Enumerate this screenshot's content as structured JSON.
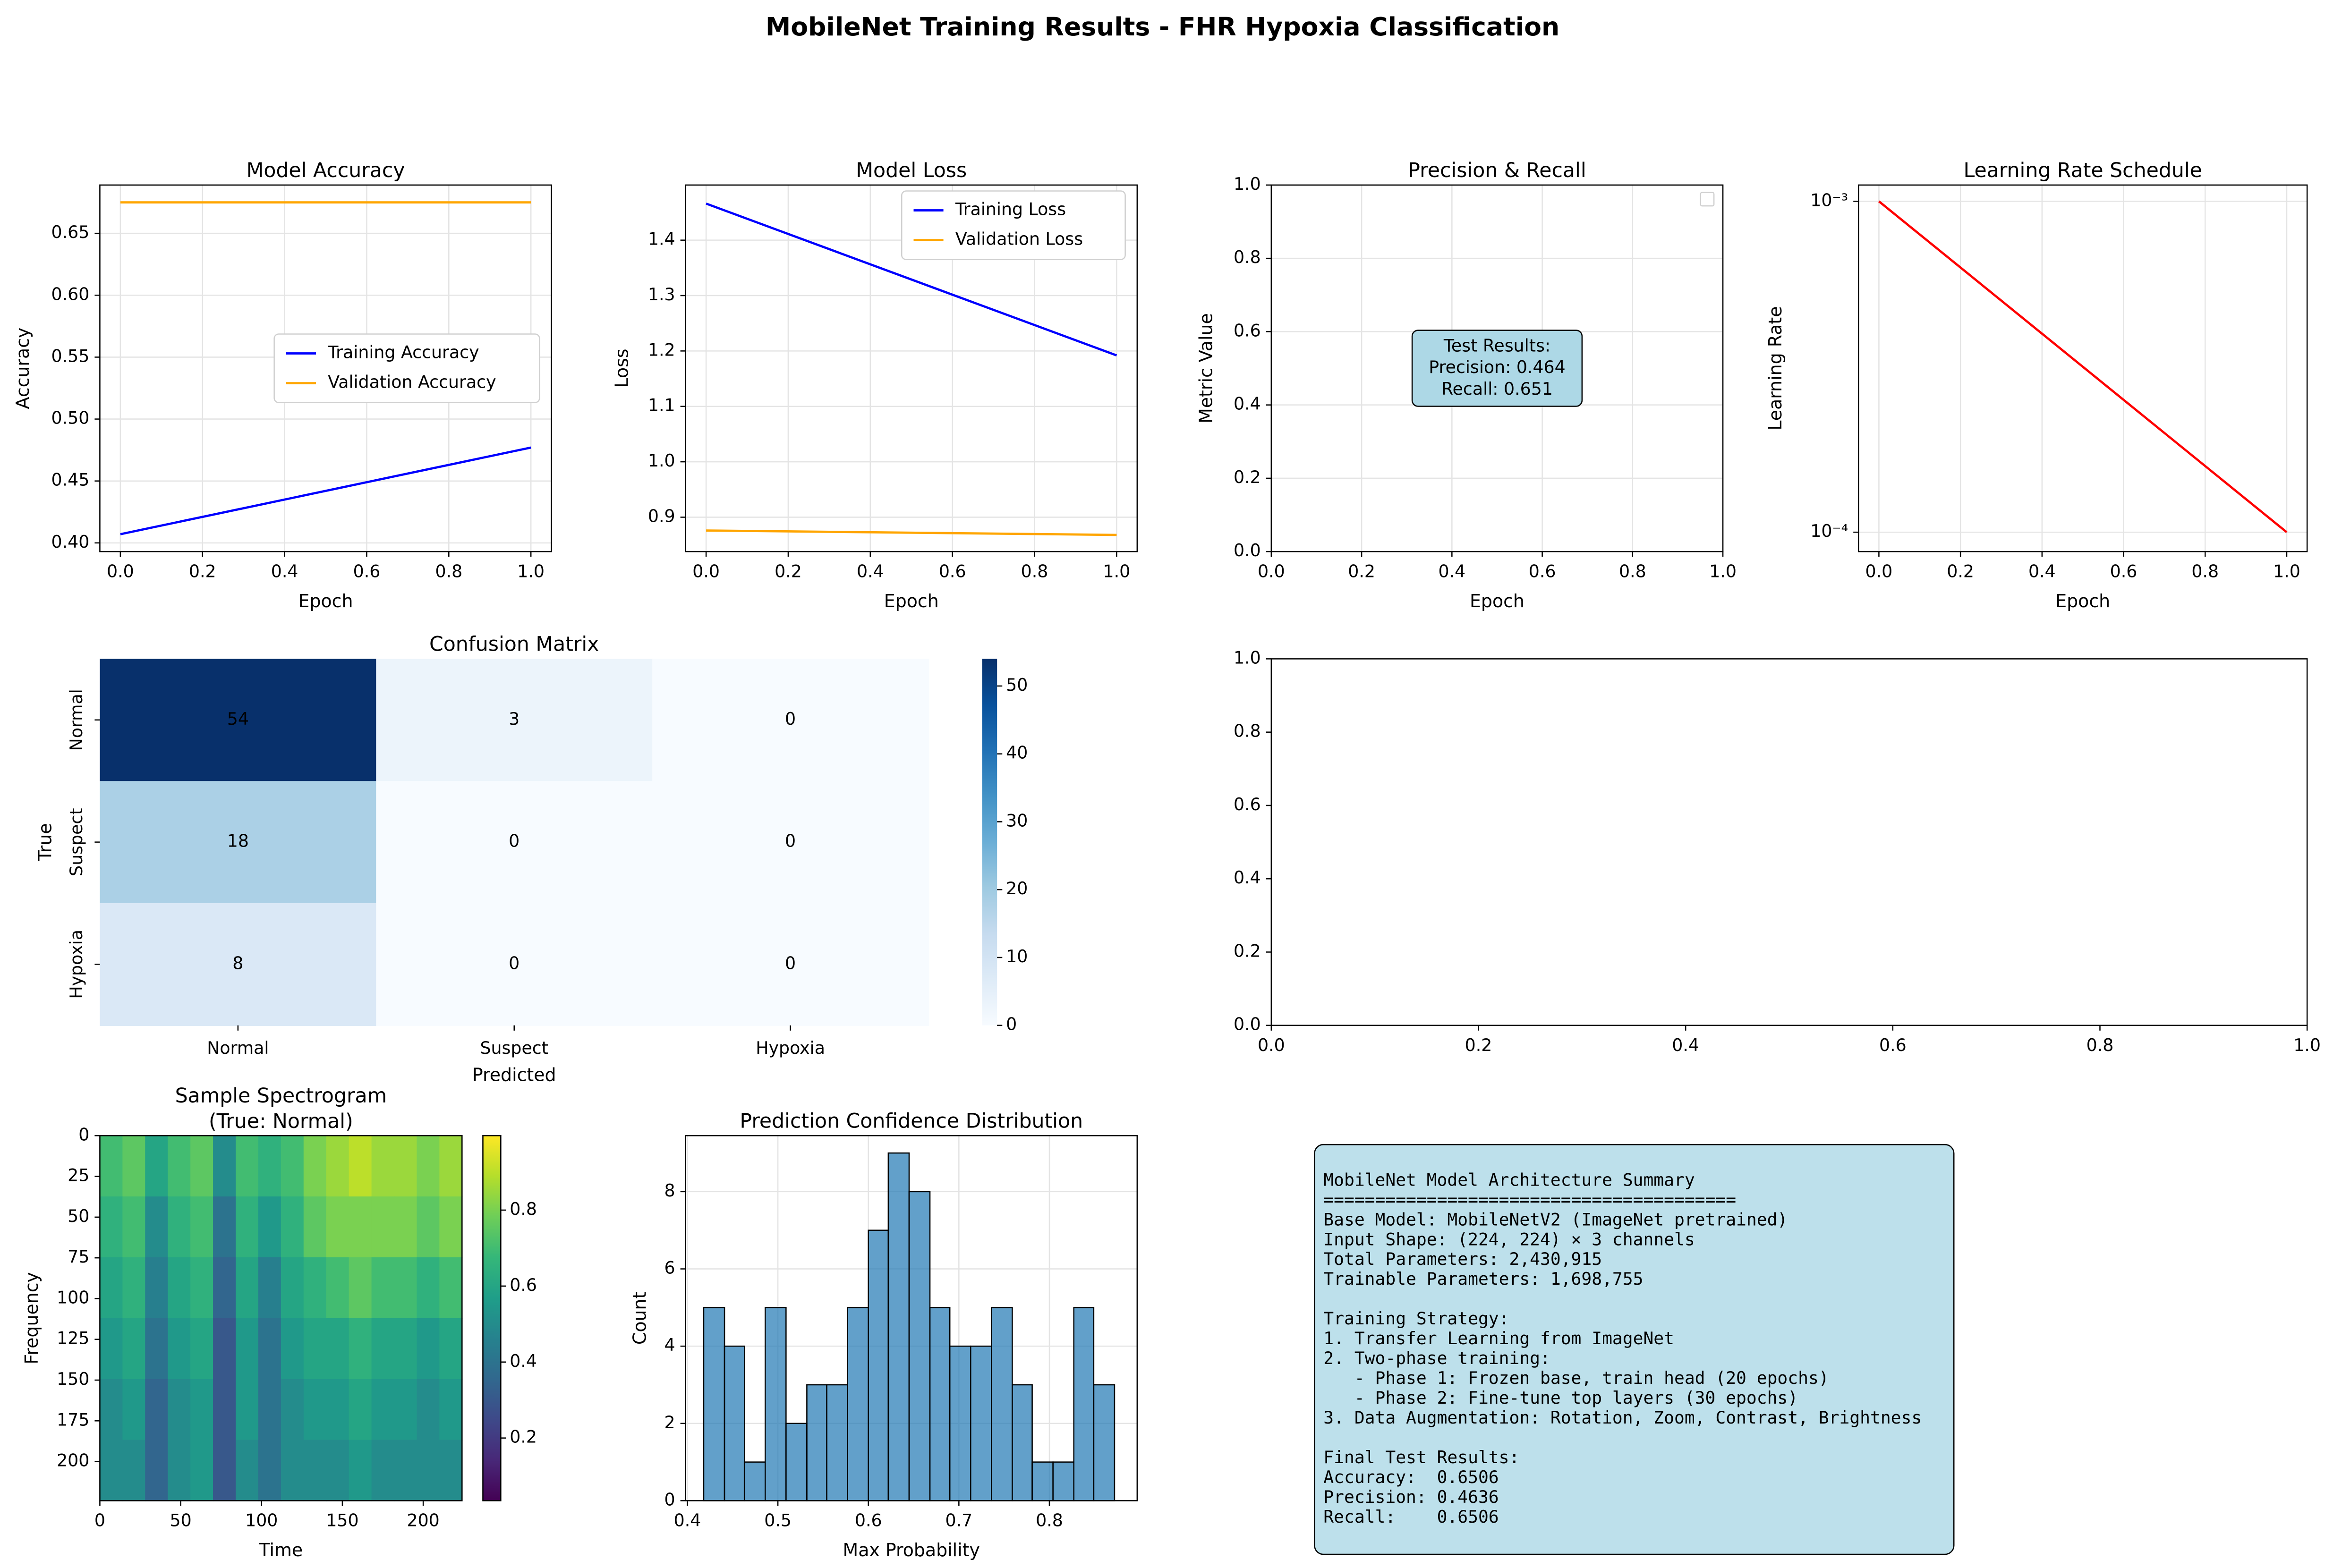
{
  "title": "MobileNet Training Results - FHR Hypoxia Classification",
  "chart_data": [
    {
      "type": "line",
      "title": "Model Accuracy",
      "xlabel": "Epoch",
      "ylabel": "Accuracy",
      "x": [
        0,
        1
      ],
      "series": [
        {
          "name": "Training Accuracy",
          "color": "#0000ff",
          "values": [
            0.407,
            0.477
          ]
        },
        {
          "name": "Validation Accuracy",
          "color": "#ffa500",
          "values": [
            0.675,
            0.675
          ]
        }
      ],
      "xlim": [
        -0.05,
        1.05
      ],
      "ylim": [
        0.393,
        0.689
      ],
      "xticks": [
        {
          "value": 0,
          "label": "0.0"
        },
        0.2,
        0.4,
        0.6,
        0.8,
        {
          "value": 1,
          "label": "1.0"
        }
      ],
      "yticks": [
        {
          "value": 0.4,
          "label": "0.40"
        },
        0.45,
        {
          "value": 0.5,
          "label": "0.50"
        },
        0.55,
        {
          "value": 0.6,
          "label": "0.60"
        },
        0.65
      ],
      "grid": true,
      "legend": "center right"
    },
    {
      "type": "line",
      "title": "Model Loss",
      "xlabel": "Epoch",
      "ylabel": "Loss",
      "x": [
        0,
        1
      ],
      "series": [
        {
          "name": "Training Loss",
          "color": "#0000ff",
          "values": [
            1.466,
            1.192
          ]
        },
        {
          "name": "Validation Loss",
          "color": "#ffa500",
          "values": [
            0.876,
            0.868
          ]
        }
      ],
      "xlim": [
        -0.05,
        1.05
      ],
      "ylim": [
        0.838,
        1.4995
      ],
      "xticks": [
        {
          "value": 0,
          "label": "0.0"
        },
        0.2,
        0.4,
        0.6,
        0.8,
        {
          "value": 1,
          "label": "1.0"
        }
      ],
      "yticks": [
        0.9,
        {
          "value": 1,
          "label": "1.0"
        },
        1.1,
        1.2,
        1.3,
        1.4
      ],
      "grid": true,
      "legend": "upper right"
    },
    {
      "type": "line",
      "title": "Precision & Recall",
      "xlabel": "Epoch",
      "ylabel": "Metric Value",
      "series": [],
      "xlim": [
        0,
        1
      ],
      "ylim": [
        0,
        1
      ],
      "xticks": [
        {
          "value": 0,
          "label": "0.0"
        },
        0.2,
        0.4,
        0.6,
        0.8,
        {
          "value": 1,
          "label": "1.0"
        }
      ],
      "yticks": [
        {
          "value": 0,
          "label": "0.0"
        },
        0.2,
        0.4,
        0.6,
        0.8,
        {
          "value": 1,
          "label": "1.0"
        }
      ],
      "grid": true,
      "legend": "upper right",
      "annotation": "Test Results:\nPrecision: 0.464\nRecall: 0.651"
    },
    {
      "type": "line",
      "title": "Learning Rate Schedule",
      "xlabel": "Epoch",
      "ylabel": "Learning Rate",
      "x": [
        0,
        1
      ],
      "series": [
        {
          "color": "#ff0000",
          "values": [
            0.001,
            0.0001
          ]
        }
      ],
      "xlim": [
        -0.05,
        1.05
      ],
      "ylim": [
        8.74e-05,
        0.00112
      ],
      "ylog": true,
      "xticks": [
        {
          "value": 0,
          "label": "0.0"
        },
        0.2,
        0.4,
        0.6,
        0.8,
        {
          "value": 1,
          "label": "1.0"
        }
      ],
      "yticks": [
        {
          "value": 0.0001,
          "label": "10⁻⁴"
        },
        {
          "value": 0.001,
          "label": "10⁻³"
        }
      ],
      "grid": true
    },
    {
      "type": "heatmap",
      "title": "Confusion Matrix",
      "xlabel": "Predicted",
      "ylabel": "True",
      "x_categories": [
        "Normal",
        "Suspect",
        "Hypoxia"
      ],
      "y_categories": [
        "Normal",
        "Suspect",
        "Hypoxia"
      ],
      "values": [
        [
          54,
          3,
          0
        ],
        [
          18,
          0,
          0
        ],
        [
          8,
          0,
          0
        ]
      ],
      "cmap": "Blues",
      "clim": [
        0,
        54
      ],
      "cticks": [
        0,
        10,
        20,
        30,
        40,
        50
      ]
    },
    {
      "type": "line",
      "series": [],
      "xlim": [
        0,
        1
      ],
      "ylim": [
        0,
        1
      ],
      "xticks": [
        {
          "value": 0,
          "label": "0.0"
        },
        0.2,
        0.4,
        0.6,
        0.8,
        {
          "value": 1,
          "label": "1.0"
        }
      ],
      "yticks": [
        {
          "value": 0,
          "label": "0.0"
        },
        0.2,
        0.4,
        0.6,
        0.8,
        {
          "value": 1,
          "label": "1.0"
        }
      ]
    },
    {
      "type": "image",
      "title": "Sample Spectrogram\n(True: Normal)",
      "xlabel": "Time",
      "ylabel": "Frequency",
      "values": [
        [
          0.7,
          0.75,
          0.6,
          0.7,
          0.75,
          0.5,
          0.7,
          0.65,
          0.7,
          0.8,
          0.85,
          0.9,
          0.85,
          0.85,
          0.8,
          0.85
        ],
        [
          0.65,
          0.7,
          0.5,
          0.65,
          0.7,
          0.4,
          0.65,
          0.55,
          0.65,
          0.75,
          0.8,
          0.8,
          0.8,
          0.8,
          0.75,
          0.8
        ],
        [
          0.6,
          0.65,
          0.45,
          0.6,
          0.65,
          0.35,
          0.6,
          0.45,
          0.6,
          0.65,
          0.7,
          0.75,
          0.7,
          0.7,
          0.65,
          0.7
        ],
        [
          0.55,
          0.6,
          0.4,
          0.55,
          0.6,
          0.3,
          0.55,
          0.4,
          0.55,
          0.6,
          0.6,
          0.65,
          0.6,
          0.6,
          0.55,
          0.6
        ],
        [
          0.5,
          0.55,
          0.35,
          0.5,
          0.55,
          0.3,
          0.55,
          0.4,
          0.5,
          0.55,
          0.55,
          0.6,
          0.55,
          0.55,
          0.5,
          0.55
        ],
        [
          0.5,
          0.5,
          0.35,
          0.5,
          0.55,
          0.3,
          0.5,
          0.4,
          0.5,
          0.5,
          0.5,
          0.55,
          0.5,
          0.5,
          0.5,
          0.5
        ]
      ],
      "cmap": "viridis",
      "xlim": [
        0,
        224
      ],
      "ylim": [
        224,
        0
      ],
      "xticks": [
        0,
        50,
        100,
        150,
        200
      ],
      "yticks": [
        0,
        25,
        50,
        75,
        100,
        125,
        150,
        175,
        200
      ],
      "clim": [
        0.035,
        0.996
      ],
      "cticks": [
        0.2,
        0.4,
        0.6,
        0.8
      ]
    },
    {
      "type": "histogram",
      "title": "Prediction Confidence Distribution",
      "xlabel": "Max Probability",
      "ylabel": "Count",
      "bins": [
        0.418,
        0.441,
        0.463,
        0.486,
        0.509,
        0.532,
        0.554,
        0.577,
        0.6,
        0.622,
        0.645,
        0.668,
        0.69,
        0.713,
        0.736,
        0.759,
        0.781,
        0.804,
        0.827,
        0.849,
        0.872
      ],
      "values": [
        5,
        4,
        1,
        5,
        2,
        3,
        3,
        5,
        7,
        9,
        8,
        5,
        4,
        4,
        5,
        3,
        1,
        1,
        5,
        3
      ],
      "color": "#1f77b4",
      "xlim": [
        0.398,
        0.897
      ],
      "ylim": [
        0,
        9.45
      ],
      "xticks": [
        0.4,
        0.5,
        0.6,
        0.7,
        0.8
      ],
      "yticks": [
        0,
        2,
        4,
        6,
        8
      ],
      "grid": true
    }
  ],
  "summary_box": {
    "text": "MobileNet Model Architecture Summary\n========================================\nBase Model: MobileNetV2 (ImageNet pretrained)\nInput Shape: (224, 224) × 3 channels\nTotal Parameters: 2,430,915\nTrainable Parameters: 1,698,755\n\nTraining Strategy:\n1. Transfer Learning from ImageNet\n2. Two-phase training:\n   - Phase 1: Frozen base, train head (20 epochs)\n   - Phase 2: Fine-tune top layers (30 epochs)\n3. Data Augmentation: Rotation, Zoom, Contrast, Brightness\n\nFinal Test Results:\nAccuracy:  0.6506\nPrecision: 0.4636\nRecall:    0.6506"
  }
}
